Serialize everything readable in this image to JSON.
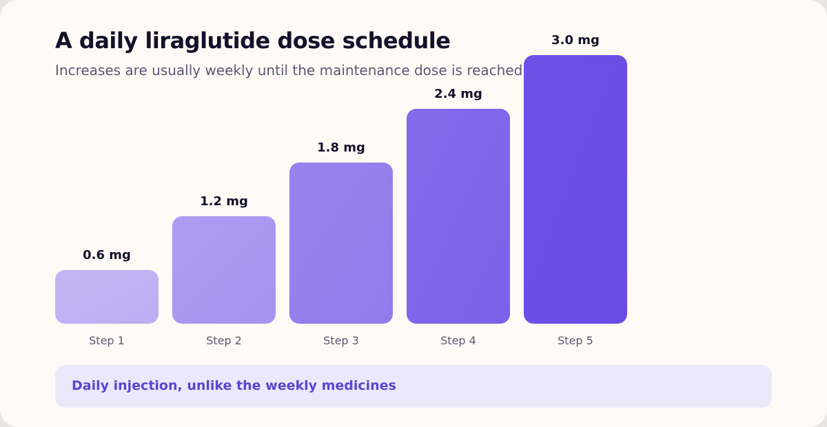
{
  "title": "A daily liraglutide dose schedule",
  "subtitle": "Increases are usually weekly until the maintenance dose is reached",
  "note": "Daily injection, unlike the weekly medicines",
  "colors": {
    "background": "#fffaf5",
    "title": "#14112b",
    "muted": "#5c5873",
    "note_bg": "#ebe8fc",
    "note_text": "#5a45cf",
    "bar_light": "#c4b5f4",
    "bar_dark": "#6a4be6"
  },
  "chart_data": {
    "type": "bar",
    "categories": [
      "Step 1",
      "Step 2",
      "Step 3",
      "Step 4",
      "Step 5"
    ],
    "values": [
      0.6,
      1.2,
      1.8,
      2.4,
      3.0
    ],
    "value_labels": [
      "0.6 mg",
      "1.2 mg",
      "1.8 mg",
      "2.4 mg",
      "3.0 mg"
    ],
    "unit": "mg",
    "ylim": [
      0,
      3.0
    ],
    "grid": false,
    "legend": "none"
  }
}
